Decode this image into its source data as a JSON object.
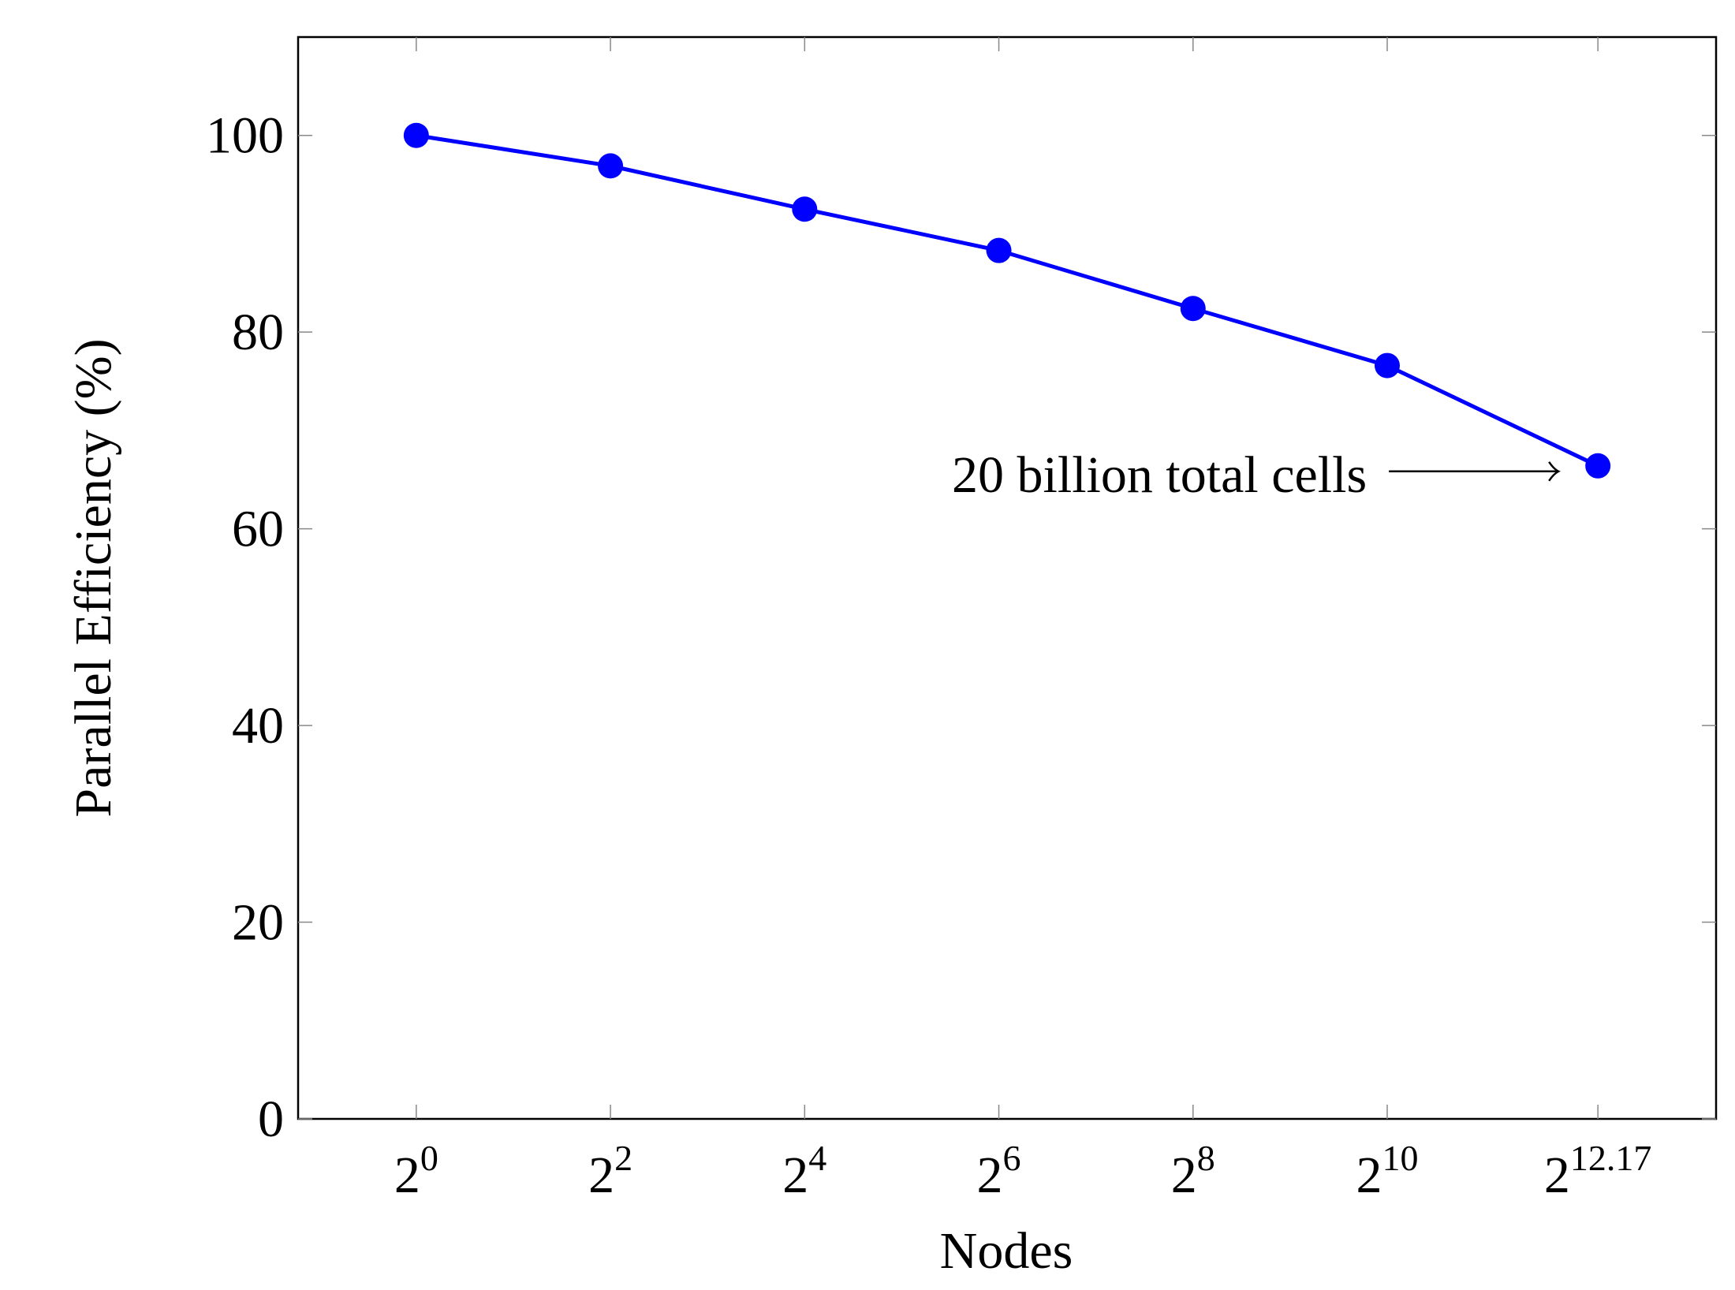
{
  "chart_data": {
    "type": "line",
    "title": "",
    "xlabel": "Nodes",
    "ylabel": "Parallel Efficiency (%)",
    "x_scale": "log2",
    "x": [
      1,
      4,
      16,
      64,
      256,
      1024,
      4608
    ],
    "x_exponents": [
      0,
      2,
      4,
      6,
      8,
      10,
      12.17
    ],
    "x_tick_labels": [
      {
        "base": "2",
        "exp": "0"
      },
      {
        "base": "2",
        "exp": "2"
      },
      {
        "base": "2",
        "exp": "4"
      },
      {
        "base": "2",
        "exp": "6"
      },
      {
        "base": "2",
        "exp": "8"
      },
      {
        "base": "2",
        "exp": "10"
      },
      {
        "base": "2",
        "exp": "12.17"
      }
    ],
    "xlim_exponent": [
      -1.217,
      13.387
    ],
    "y_ticks": [
      0,
      20,
      40,
      60,
      80,
      100
    ],
    "y_tick_labels": [
      "0",
      "20",
      "40",
      "60",
      "80",
      "100"
    ],
    "ylim": [
      0,
      110
    ],
    "grid": false,
    "series": [
      {
        "values": [
          100,
          96.9,
          92.5,
          88.3,
          82.4,
          76.6,
          66.4
        ],
        "color": "#0000ff",
        "marker": "circle"
      }
    ],
    "annotations": [
      {
        "text": "20 billion total cells",
        "points_to_index": 6
      }
    ]
  }
}
